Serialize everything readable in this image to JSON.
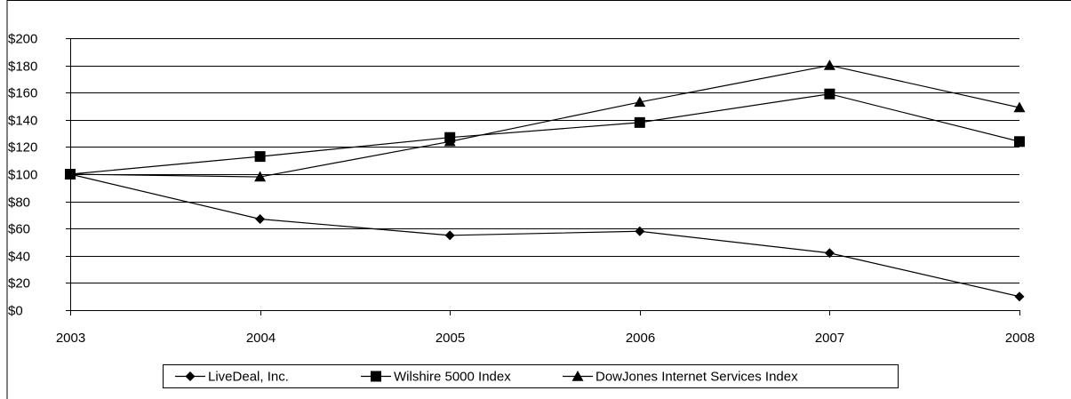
{
  "chart_data": {
    "type": "line",
    "title": "",
    "xlabel": "",
    "ylabel": "",
    "x": [
      "2003",
      "2004",
      "2005",
      "2006",
      "2007",
      "2008"
    ],
    "ylim": [
      0,
      200
    ],
    "yticks": [
      0,
      20,
      40,
      60,
      80,
      100,
      120,
      140,
      160,
      180,
      200
    ],
    "ytick_labels": [
      "$0",
      "$20",
      "$40",
      "$60",
      "$80",
      "$100",
      "$120",
      "$140",
      "$160",
      "$180",
      "$200"
    ],
    "grid": true,
    "legend_position": "bottom",
    "series": [
      {
        "name": "LiveDeal, Inc.",
        "marker": "diamond",
        "color": "#000000",
        "values": [
          100,
          67,
          55,
          58,
          42,
          10
        ]
      },
      {
        "name": "Wilshire 5000 Index",
        "marker": "square",
        "color": "#000000",
        "values": [
          100,
          113,
          127,
          138,
          159,
          124
        ]
      },
      {
        "name": "DowJones Internet  Services Index",
        "marker": "triangle",
        "color": "#000000",
        "values": [
          100,
          98,
          124,
          153,
          180,
          149
        ]
      }
    ]
  }
}
